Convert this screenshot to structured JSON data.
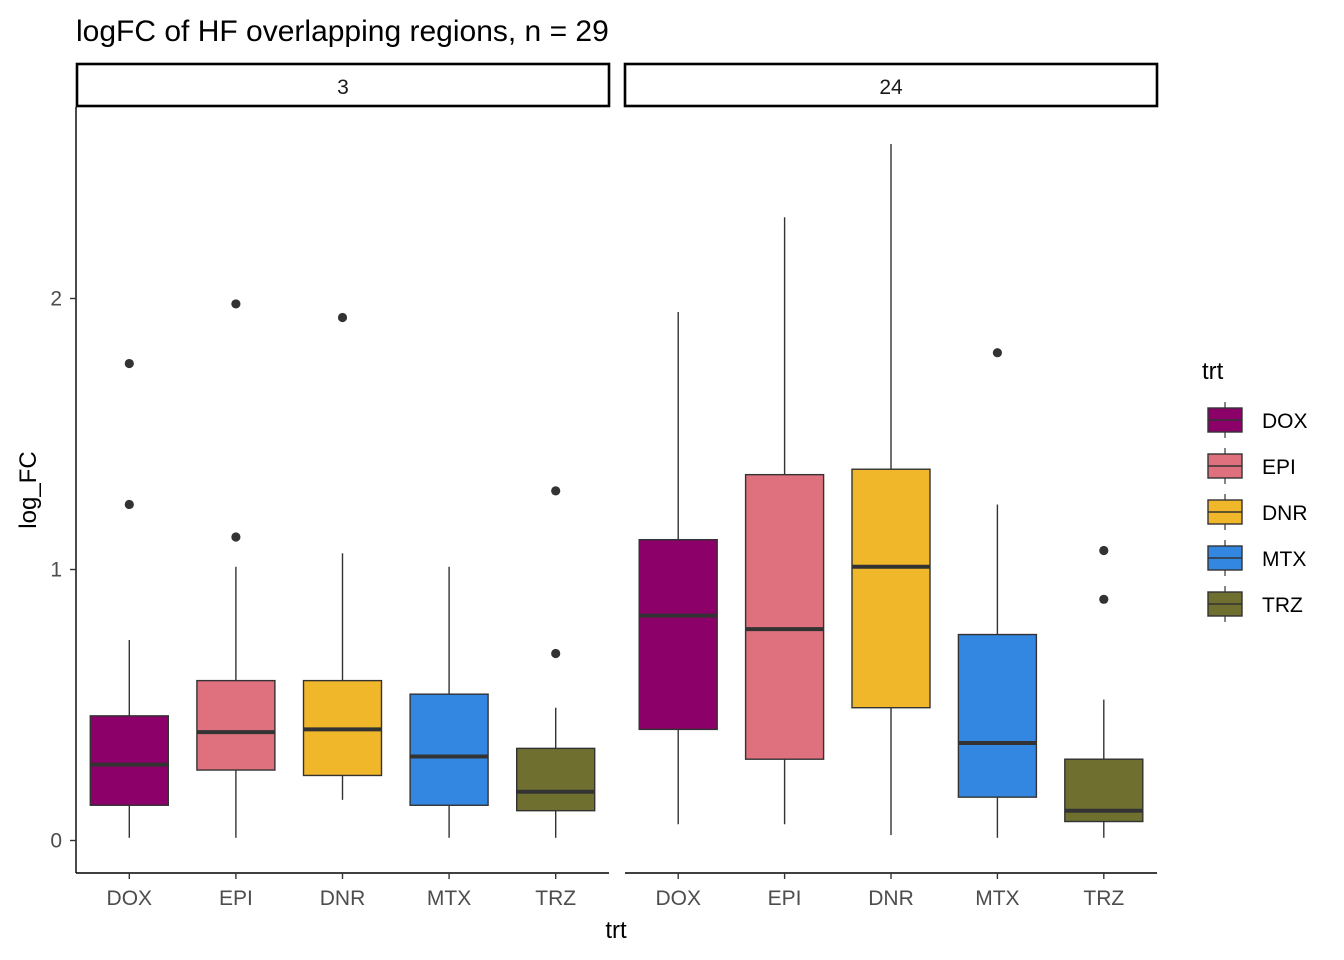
{
  "chart_data": {
    "type": "boxplot",
    "title": "logFC of HF overlapping regions, n = 29",
    "xlabel": "trt",
    "ylabel": "log_FC",
    "categories": [
      "DOX",
      "EPI",
      "DNR",
      "MTX",
      "TRZ"
    ],
    "ylim": [
      -0.12,
      2.7
    ],
    "yticks": [
      0,
      1,
      2
    ],
    "grid": false,
    "legend": {
      "title": "trt",
      "placement": "right",
      "entries": [
        "DOX",
        "EPI",
        "DNR",
        "MTX",
        "TRZ"
      ]
    },
    "colors": {
      "DOX": "#8b0069",
      "EPI": "#df707e",
      "DNR": "#f1b72b",
      "MTX": "#3387e1",
      "TRZ": "#6f6f30"
    },
    "facets": [
      {
        "label": "3",
        "boxes": [
          {
            "trt": "DOX",
            "whisker_low": 0.01,
            "q1": 0.13,
            "median": 0.28,
            "q3": 0.46,
            "whisker_high": 0.74,
            "outliers": [
              1.76,
              1.24
            ]
          },
          {
            "trt": "EPI",
            "whisker_low": 0.01,
            "q1": 0.26,
            "median": 0.4,
            "q3": 0.59,
            "whisker_high": 1.01,
            "outliers": [
              1.98,
              1.12
            ]
          },
          {
            "trt": "DNR",
            "whisker_low": 0.15,
            "q1": 0.24,
            "median": 0.41,
            "q3": 0.59,
            "whisker_high": 1.06,
            "outliers": [
              1.93
            ]
          },
          {
            "trt": "MTX",
            "whisker_low": 0.01,
            "q1": 0.13,
            "median": 0.31,
            "q3": 0.54,
            "whisker_high": 1.01,
            "outliers": []
          },
          {
            "trt": "TRZ",
            "whisker_low": 0.01,
            "q1": 0.11,
            "median": 0.18,
            "q3": 0.34,
            "whisker_high": 0.49,
            "outliers": [
              1.29,
              0.69
            ]
          }
        ]
      },
      {
        "label": "24",
        "boxes": [
          {
            "trt": "DOX",
            "whisker_low": 0.06,
            "q1": 0.41,
            "median": 0.83,
            "q3": 1.11,
            "whisker_high": 1.95,
            "outliers": []
          },
          {
            "trt": "EPI",
            "whisker_low": 0.06,
            "q1": 0.3,
            "median": 0.78,
            "q3": 1.35,
            "whisker_high": 2.3,
            "outliers": []
          },
          {
            "trt": "DNR",
            "whisker_low": 0.02,
            "q1": 0.49,
            "median": 1.01,
            "q3": 1.37,
            "whisker_high": 2.57,
            "outliers": []
          },
          {
            "trt": "MTX",
            "whisker_low": 0.01,
            "q1": 0.16,
            "median": 0.36,
            "q3": 0.76,
            "whisker_high": 1.24,
            "outliers": [
              1.8
            ]
          },
          {
            "trt": "TRZ",
            "whisker_low": 0.01,
            "q1": 0.07,
            "median": 0.11,
            "q3": 0.3,
            "whisker_high": 0.52,
            "outliers": [
              1.07,
              0.89
            ]
          }
        ]
      }
    ]
  }
}
